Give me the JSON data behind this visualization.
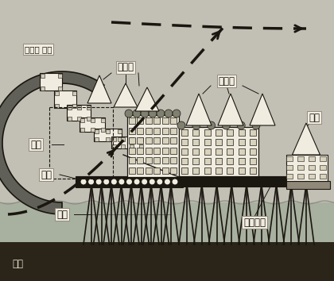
{
  "bg_color": "#c2bfb5",
  "seabed_color": "#2a2518",
  "water_color": "#a8b0a0",
  "structure_fill": "#f0ece0",
  "structure_edge": "#1a1610",
  "dark_fill": "#1a1610",
  "labels": {
    "wind": "바람의 흐름",
    "apt1": "아파트",
    "apt2": "아파트",
    "factory": "공장",
    "sluice": "수문",
    "support": "받침",
    "seabed": "해저",
    "floating_island": "떠있는섬",
    "house": "주택"
  },
  "label_bg": "#f0ece0",
  "label_fontsize": 8.5
}
